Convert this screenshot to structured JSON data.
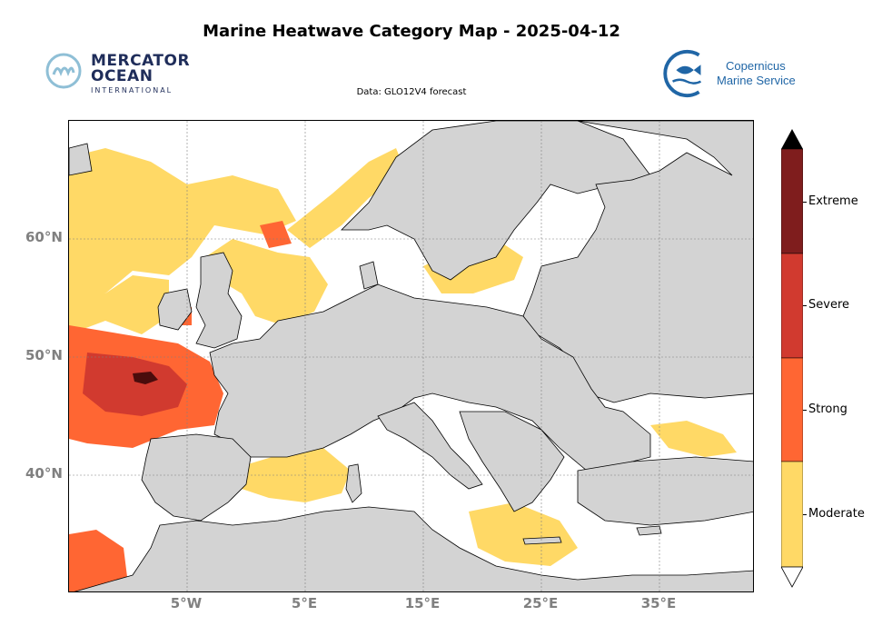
{
  "title": "Marine Heatwave Category Map - 2025-04-12",
  "subtitle": "Data: GLO12V4 forecast",
  "logos": {
    "mercator": {
      "line1": "MERCATOR",
      "line2": "OCEAN",
      "line3": "INTERNATIONAL"
    },
    "copernicus": {
      "line1": "Copernicus",
      "line2": "Marine Service"
    }
  },
  "map": {
    "lat_labels": [
      "60°N",
      "50°N",
      "40°N"
    ],
    "lon_labels": [
      "5°W",
      "5°E",
      "15°E",
      "25°E",
      "35°E"
    ],
    "lon_range": [
      -15,
      43
    ],
    "lat_range": [
      30,
      70
    ],
    "gridlines": true,
    "colors": {
      "land": "#d3d3d3",
      "sea": "#ffffff",
      "coast": "#000000"
    }
  },
  "legend": {
    "categories": [
      {
        "label": "Extreme",
        "color": "#7f1d1d"
      },
      {
        "label": "Severe",
        "color": "#d13a2f"
      },
      {
        "label": "Strong",
        "color": "#ff6633"
      },
      {
        "label": "Moderate",
        "color": "#ffd966"
      }
    ],
    "extend_top_color": "#000000",
    "extend_bottom_color": "#ffffff"
  }
}
